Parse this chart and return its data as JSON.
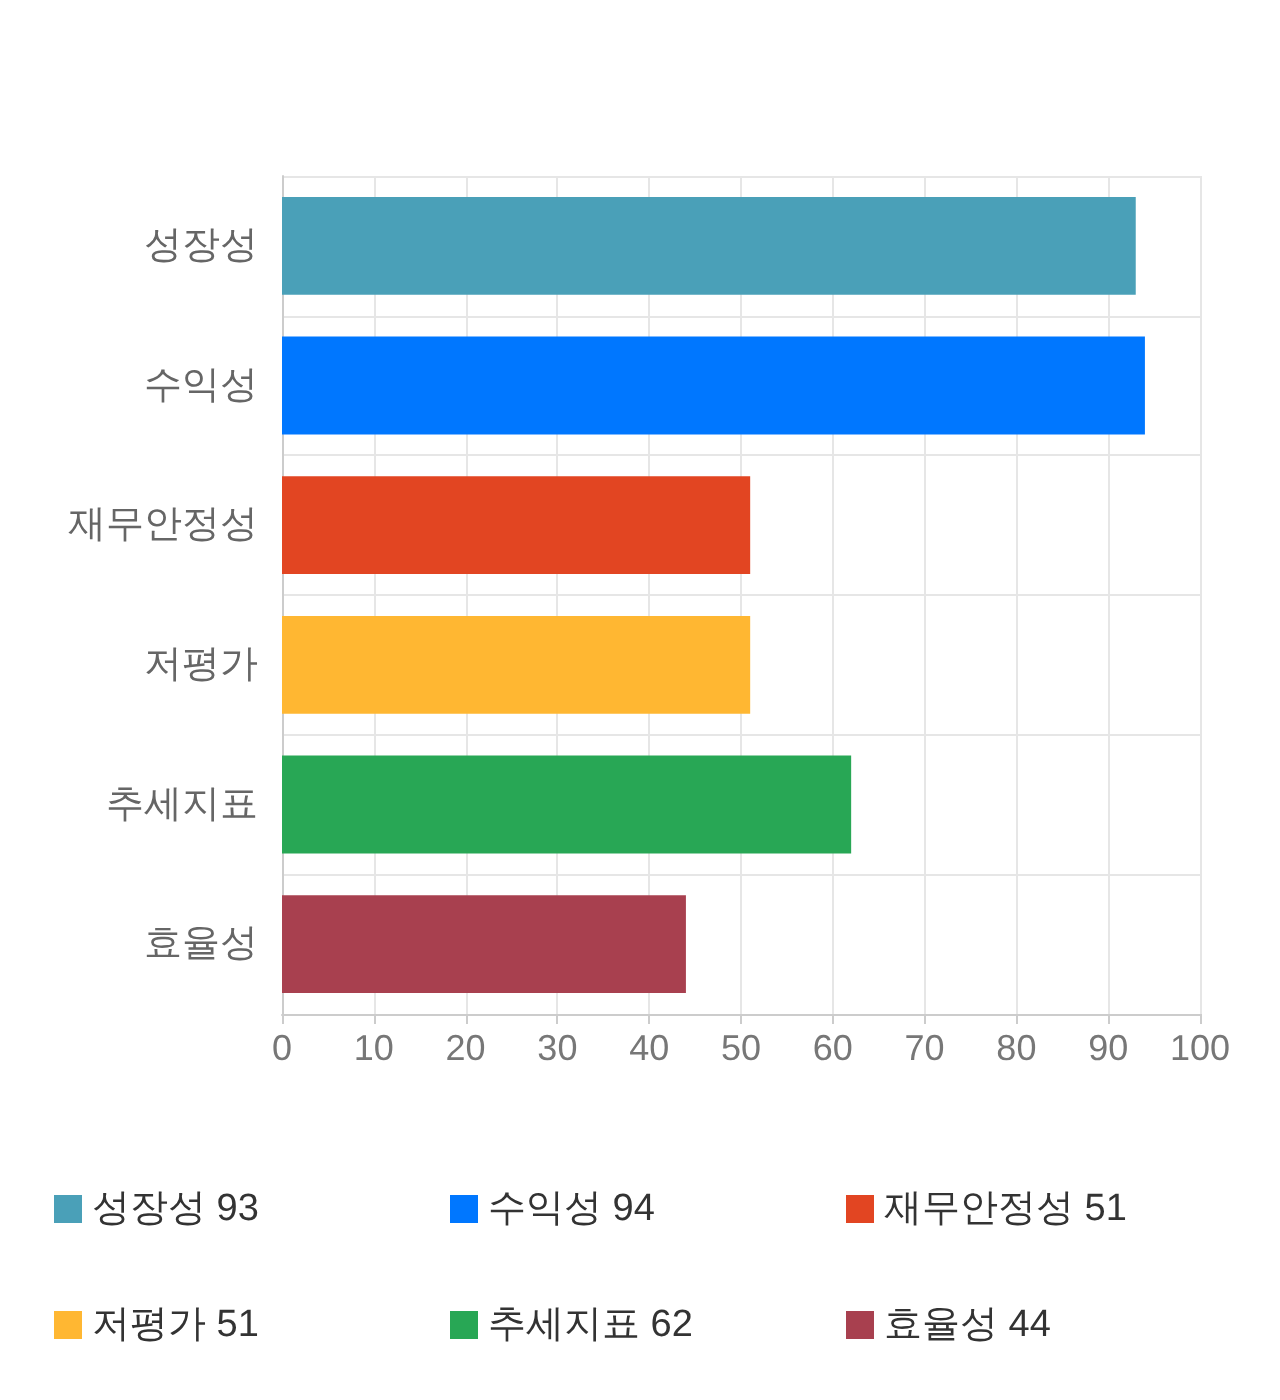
{
  "chart_data": {
    "type": "bar",
    "orientation": "horizontal",
    "categories": [
      "성장성",
      "수익성",
      "재무안정성",
      "저평가",
      "추세지표",
      "효율성"
    ],
    "series": [
      {
        "name": "성장성 93",
        "color": "#4aa0b8",
        "values": [
          93,
          null,
          null,
          null,
          null,
          null
        ]
      },
      {
        "name": "수익성 94",
        "color": "#0077ff",
        "values": [
          null,
          94,
          null,
          null,
          null,
          null
        ]
      },
      {
        "name": "재무안정성 51",
        "color": "#e24522",
        "values": [
          null,
          null,
          51,
          null,
          null,
          null
        ]
      },
      {
        "name": "저평가 51",
        "color": "#ffb732",
        "values": [
          null,
          null,
          null,
          51,
          null,
          null
        ]
      },
      {
        "name": "추세지표 62",
        "color": "#28a755",
        "values": [
          null,
          null,
          null,
          null,
          62,
          null
        ]
      },
      {
        "name": "효율성 44",
        "color": "#a8404f",
        "values": [
          null,
          null,
          null,
          null,
          null,
          44
        ]
      }
    ],
    "xlim": [
      0,
      100
    ],
    "xticks": [
      0,
      10,
      20,
      30,
      40,
      50,
      60,
      70,
      80,
      90,
      100
    ],
    "grid": true,
    "legend": "bottom"
  }
}
